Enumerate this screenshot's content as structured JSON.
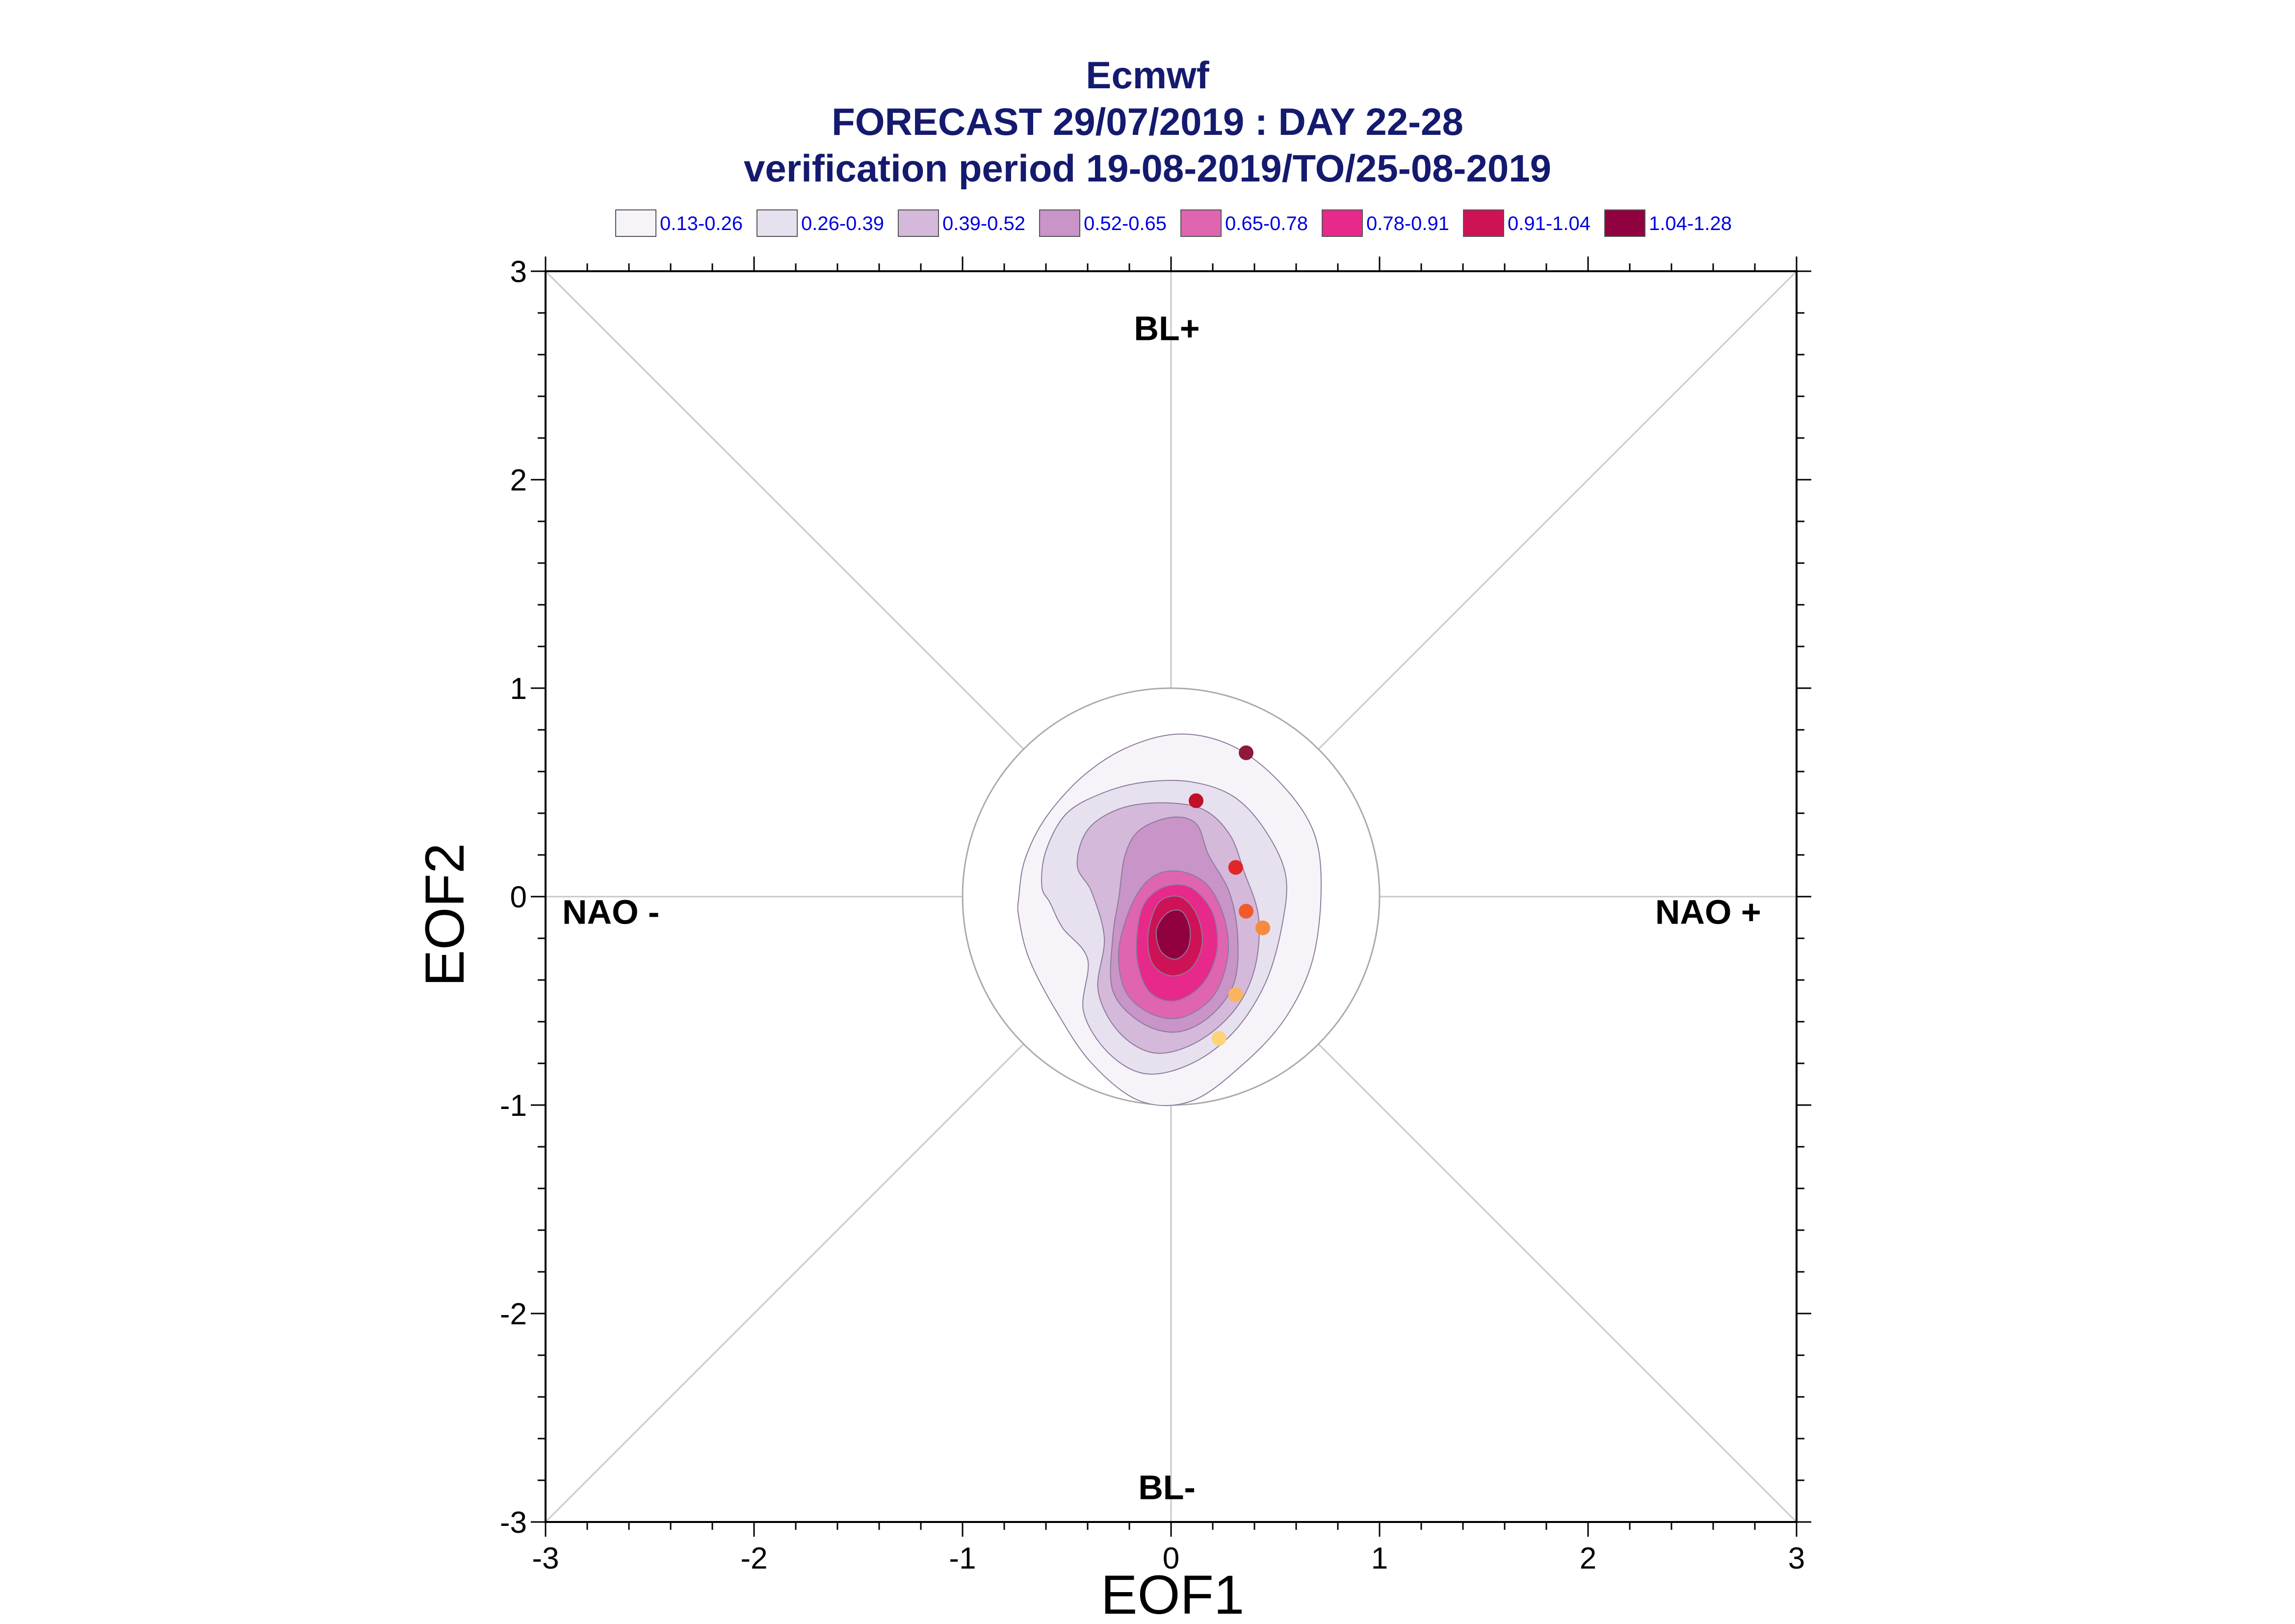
{
  "chart_data": {
    "type": "scatter",
    "title": "Ecmwf",
    "subtitle": "FORECAST 29/07/2019 : DAY 22-28",
    "subtitle2": "verification period 19-08-2019/TO/25-08-2019",
    "xlabel": "EOF1",
    "ylabel": "EOF2",
    "xlim": [
      -3,
      3
    ],
    "ylim": [
      -3,
      3
    ],
    "xticks": [
      "-3",
      "-2",
      "-1",
      "0",
      "1",
      "2",
      "3"
    ],
    "yticks": [
      "-3",
      "-2",
      "-1",
      "0",
      "1",
      "2",
      "3"
    ],
    "grid": false,
    "reference_circle_radius": 1,
    "legend_position": "top",
    "legend": [
      {
        "label": "0.13-0.26",
        "color": "#f7f4f9"
      },
      {
        "label": "0.26-0.39",
        "color": "#e7e1ef"
      },
      {
        "label": "0.39-0.52",
        "color": "#d4b9da"
      },
      {
        "label": "0.52-0.65",
        "color": "#c994c7"
      },
      {
        "label": "0.65-0.78",
        "color": "#df65b0"
      },
      {
        "label": "0.78-0.91",
        "color": "#e7298a"
      },
      {
        "label": "0.91-1.04",
        "color": "#ce1256"
      },
      {
        "label": "1.04-1.28",
        "color": "#91003f"
      }
    ],
    "regime_labels": {
      "top": "BL+",
      "bottom": "BL-",
      "left": "NAO -",
      "right": "NAO +"
    },
    "density_center": [
      0.02,
      -0.18
    ],
    "density_contours": [
      {
        "level": "0.13-0.26",
        "color": "#f7f4f9",
        "points": [
          [
            -0.73,
            0.0
          ],
          [
            -0.7,
            0.18
          ],
          [
            -0.6,
            0.38
          ],
          [
            -0.42,
            0.58
          ],
          [
            -0.2,
            0.72
          ],
          [
            0.05,
            0.78
          ],
          [
            0.3,
            0.72
          ],
          [
            0.52,
            0.55
          ],
          [
            0.68,
            0.32
          ],
          [
            0.72,
            0.05
          ],
          [
            0.68,
            -0.3
          ],
          [
            0.55,
            -0.58
          ],
          [
            0.35,
            -0.8
          ],
          [
            0.1,
            -0.98
          ],
          [
            -0.15,
            -0.98
          ],
          [
            -0.38,
            -0.8
          ],
          [
            -0.55,
            -0.55
          ],
          [
            -0.68,
            -0.3
          ],
          [
            -0.73,
            -0.1
          ]
        ]
      },
      {
        "level": "0.26-0.39",
        "color": "#e7e1ef",
        "points": [
          [
            -0.62,
            0.05
          ],
          [
            -0.6,
            0.22
          ],
          [
            -0.5,
            0.4
          ],
          [
            -0.32,
            0.5
          ],
          [
            -0.12,
            0.55
          ],
          [
            0.1,
            0.55
          ],
          [
            0.3,
            0.48
          ],
          [
            0.45,
            0.32
          ],
          [
            0.55,
            0.1
          ],
          [
            0.53,
            -0.15
          ],
          [
            0.45,
            -0.42
          ],
          [
            0.3,
            -0.65
          ],
          [
            0.1,
            -0.8
          ],
          [
            -0.12,
            -0.85
          ],
          [
            -0.3,
            -0.75
          ],
          [
            -0.42,
            -0.55
          ],
          [
            -0.4,
            -0.3
          ],
          [
            -0.52,
            -0.15
          ],
          [
            -0.58,
            -0.03
          ]
        ]
      },
      {
        "level": "0.39-0.52",
        "color": "#d4b9da",
        "points": [
          [
            -0.45,
            0.15
          ],
          [
            -0.4,
            0.32
          ],
          [
            -0.25,
            0.42
          ],
          [
            -0.05,
            0.45
          ],
          [
            0.15,
            0.42
          ],
          [
            0.28,
            0.3
          ],
          [
            0.35,
            0.12
          ],
          [
            0.42,
            -0.1
          ],
          [
            0.4,
            -0.35
          ],
          [
            0.3,
            -0.55
          ],
          [
            0.12,
            -0.7
          ],
          [
            -0.08,
            -0.75
          ],
          [
            -0.25,
            -0.65
          ],
          [
            -0.35,
            -0.45
          ],
          [
            -0.32,
            -0.2
          ],
          [
            -0.38,
            0.02
          ]
        ]
      },
      {
        "level": "0.52-0.65",
        "color": "#c994c7",
        "points": [
          [
            -0.22,
            0.2
          ],
          [
            -0.15,
            0.32
          ],
          [
            0.0,
            0.38
          ],
          [
            0.12,
            0.35
          ],
          [
            0.18,
            0.2
          ],
          [
            0.28,
            0.02
          ],
          [
            0.32,
            -0.2
          ],
          [
            0.3,
            -0.42
          ],
          [
            0.18,
            -0.58
          ],
          [
            0.02,
            -0.65
          ],
          [
            -0.15,
            -0.6
          ],
          [
            -0.28,
            -0.45
          ],
          [
            -0.28,
            -0.2
          ],
          [
            -0.25,
            0.0
          ]
        ]
      },
      {
        "level": "0.65-0.78",
        "color": "#df65b0",
        "points": [
          [
            -0.18,
            -0.02
          ],
          [
            -0.08,
            0.1
          ],
          [
            0.05,
            0.12
          ],
          [
            0.18,
            0.05
          ],
          [
            0.26,
            -0.12
          ],
          [
            0.27,
            -0.3
          ],
          [
            0.2,
            -0.48
          ],
          [
            0.05,
            -0.58
          ],
          [
            -0.1,
            -0.56
          ],
          [
            -0.22,
            -0.45
          ],
          [
            -0.25,
            -0.25
          ]
        ]
      },
      {
        "level": "0.78-0.91",
        "color": "#e7298a",
        "points": [
          [
            -0.12,
            -0.02
          ],
          [
            -0.02,
            0.05
          ],
          [
            0.1,
            0.04
          ],
          [
            0.2,
            -0.08
          ],
          [
            0.22,
            -0.26
          ],
          [
            0.15,
            -0.42
          ],
          [
            0.02,
            -0.5
          ],
          [
            -0.1,
            -0.46
          ],
          [
            -0.16,
            -0.32
          ],
          [
            -0.16,
            -0.15
          ]
        ]
      },
      {
        "level": "0.91-1.04",
        "color": "#ce1256",
        "points": [
          [
            -0.06,
            -0.03
          ],
          [
            0.04,
            0.0
          ],
          [
            0.12,
            -0.08
          ],
          [
            0.15,
            -0.22
          ],
          [
            0.1,
            -0.34
          ],
          [
            0.0,
            -0.38
          ],
          [
            -0.09,
            -0.32
          ],
          [
            -0.11,
            -0.18
          ]
        ]
      },
      {
        "level": "1.04-1.28",
        "color": "#91003f",
        "points": [
          [
            -0.02,
            -0.08
          ],
          [
            0.05,
            -0.07
          ],
          [
            0.09,
            -0.15
          ],
          [
            0.08,
            -0.25
          ],
          [
            0.02,
            -0.3
          ],
          [
            -0.05,
            -0.26
          ],
          [
            -0.07,
            -0.16
          ]
        ]
      }
    ],
    "points": [
      {
        "x": 0.36,
        "y": 0.69,
        "color": "#8c1a3a"
      },
      {
        "x": 0.12,
        "y": 0.46,
        "color": "#c0102a"
      },
      {
        "x": 0.31,
        "y": 0.14,
        "color": "#e0262a"
      },
      {
        "x": 0.36,
        "y": -0.07,
        "color": "#f25a2a"
      },
      {
        "x": 0.44,
        "y": -0.15,
        "color": "#f78a40"
      },
      {
        "x": 0.31,
        "y": -0.47,
        "color": "#fbb45e"
      },
      {
        "x": 0.23,
        "y": -0.68,
        "color": "#fdd37a"
      }
    ]
  }
}
